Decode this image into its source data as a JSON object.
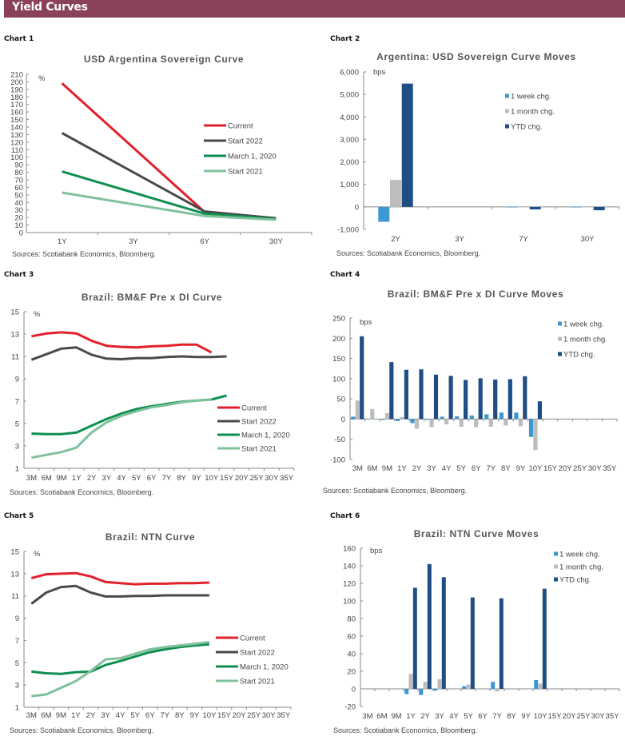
{
  "page": {
    "title": "Yield Curves",
    "source_text": "Sources: Scotiabank Economics, Bloomberg."
  },
  "colors": {
    "header": "#8b4258",
    "current": "#e2202c",
    "start2022": "#4a4a4a",
    "march2020": "#0f8f4f",
    "start2021": "#7fc19b",
    "week": "#3d97d3",
    "month": "#bdbdbd",
    "ytd": "#1f4e86"
  },
  "chart_data": [
    {
      "label": "Chart 1",
      "type": "line",
      "title": "USD Argentina Sovereign Curve",
      "unit_label": "%",
      "categories": [
        "1Y",
        "3Y",
        "6Y",
        "30Y"
      ],
      "ylim": [
        0,
        210
      ],
      "yticks": [
        0,
        10,
        20,
        30,
        40,
        50,
        60,
        70,
        80,
        90,
        100,
        110,
        120,
        130,
        140,
        150,
        160,
        170,
        180,
        190,
        200,
        210
      ],
      "legend_position": "right",
      "series": [
        {
          "name": "Current",
          "color_key": "current",
          "values": [
            198,
            null,
            27,
            19
          ]
        },
        {
          "name": "Start 2022",
          "color_key": "start2022",
          "values": [
            132,
            null,
            28,
            19
          ]
        },
        {
          "name": "March 1, 2020",
          "color_key": "march2020",
          "values": [
            81,
            null,
            25,
            18
          ]
        },
        {
          "name": "Start 2021",
          "color_key": "start2021",
          "values": [
            53,
            null,
            22,
            17
          ]
        }
      ]
    },
    {
      "label": "Chart 2",
      "type": "bar",
      "title": "Argentina: USD Sovereign Curve Moves",
      "unit_label": "bps",
      "categories": [
        "2Y",
        "3Y",
        "7Y",
        "30Y"
      ],
      "ylim": [
        -1000,
        6000
      ],
      "yticks": [
        -1000,
        0,
        1000,
        2000,
        3000,
        4000,
        5000,
        6000
      ],
      "ytick_labels": [
        "-1,000",
        "0",
        "1,000",
        "2,000",
        "3,000",
        "4,000",
        "5,000",
        "6,000"
      ],
      "legend_position": "top-right",
      "series": [
        {
          "name": "1 week chg.",
          "color_key": "week",
          "values": [
            -660,
            null,
            -15,
            -20
          ]
        },
        {
          "name": "1 month chg.",
          "color_key": "month",
          "values": [
            1200,
            null,
            -10,
            -10
          ]
        },
        {
          "name": "YTD chg.",
          "color_key": "ytd",
          "values": [
            5480,
            null,
            -110,
            -150
          ]
        }
      ]
    },
    {
      "label": "Chart 3",
      "type": "line",
      "title": "Brazil: BM&F Pre x DI Curve",
      "unit_label": "%",
      "categories": [
        "3M",
        "6M",
        "9M",
        "1Y",
        "2Y",
        "3Y",
        "4Y",
        "5Y",
        "6Y",
        "7Y",
        "8Y",
        "9Y",
        "10Y",
        "15Y",
        "20Y",
        "25Y",
        "30Y",
        "35Y"
      ],
      "ylim": [
        1,
        15
      ],
      "yticks": [
        1,
        3,
        5,
        7,
        9,
        11,
        13,
        15
      ],
      "legend_position": "bottom-right",
      "series": [
        {
          "name": "Current",
          "color_key": "current",
          "values": [
            12.8,
            13.05,
            13.15,
            13.05,
            12.4,
            11.95,
            11.85,
            11.8,
            11.9,
            11.95,
            12.05,
            12.05,
            11.35,
            null,
            null,
            null,
            null,
            null
          ]
        },
        {
          "name": "Start 2022",
          "color_key": "start2022",
          "values": [
            10.7,
            11.2,
            11.7,
            11.8,
            11.15,
            10.8,
            10.75,
            10.85,
            10.85,
            10.95,
            11.0,
            10.95,
            10.95,
            11.0,
            null,
            null,
            null,
            null
          ]
        },
        {
          "name": "March 1, 2020",
          "color_key": "march2020",
          "values": [
            4.1,
            4.05,
            4.05,
            4.2,
            4.8,
            5.4,
            5.9,
            6.3,
            6.55,
            6.75,
            6.95,
            7.05,
            7.15,
            7.5,
            null,
            null,
            null,
            null
          ]
        },
        {
          "name": "Start 2021",
          "color_key": "start2021",
          "values": [
            1.95,
            2.2,
            2.45,
            2.85,
            4.2,
            5.1,
            5.7,
            6.1,
            6.45,
            6.65,
            6.9,
            7.05,
            7.15,
            null,
            null,
            null,
            null,
            null
          ]
        }
      ]
    },
    {
      "label": "Chart 4",
      "type": "bar",
      "title": "Brazil: BM&F Pre x DI Curve Moves",
      "unit_label": "bps",
      "categories": [
        "3M",
        "6M",
        "9M",
        "1Y",
        "2Y",
        "3Y",
        "4Y",
        "5Y",
        "6Y",
        "7Y",
        "8Y",
        "9Y",
        "10Y",
        "15Y",
        "20Y",
        "25Y",
        "30Y",
        "35Y"
      ],
      "ylim": [
        -100,
        250
      ],
      "yticks": [
        -100,
        -50,
        0,
        50,
        100,
        150,
        200,
        250
      ],
      "legend_position": "top-right",
      "series": [
        {
          "name": "1 week chg.",
          "color_key": "week",
          "values": [
            6,
            1,
            -2,
            -5,
            -10,
            -2,
            6,
            7,
            9,
            12,
            16,
            16,
            -44,
            null,
            null,
            null,
            null,
            null
          ]
        },
        {
          "name": "1 month chg.",
          "color_key": "month",
          "values": [
            46,
            25,
            15,
            5,
            -24,
            -20,
            -13,
            -19,
            -20,
            -19,
            -16,
            -18,
            -77,
            null,
            null,
            null,
            null,
            null
          ]
        },
        {
          "name": "YTD chg.",
          "color_key": "ytd",
          "values": [
            205,
            null,
            141,
            122,
            123,
            110,
            107,
            97,
            101,
            98,
            99,
            106,
            44,
            null,
            null,
            null,
            null,
            null
          ]
        }
      ]
    },
    {
      "label": "Chart 5",
      "type": "line",
      "title": "Brazil: NTN Curve",
      "unit_label": "%",
      "categories": [
        "3M",
        "6M",
        "9M",
        "1Y",
        "2Y",
        "3Y",
        "4Y",
        "5Y",
        "6Y",
        "7Y",
        "8Y",
        "9Y",
        "10Y",
        "15Y",
        "20Y",
        "25Y",
        "30Y",
        "35Y"
      ],
      "ylim": [
        1,
        15
      ],
      "yticks": [
        1,
        3,
        5,
        7,
        9,
        11,
        13,
        15
      ],
      "legend_position": "bottom-right",
      "series": [
        {
          "name": "Current",
          "color_key": "current",
          "values": [
            12.6,
            12.95,
            13.0,
            13.05,
            12.75,
            12.25,
            12.15,
            12.05,
            12.1,
            12.1,
            12.15,
            12.15,
            12.2,
            null,
            null,
            null,
            null,
            null
          ]
        },
        {
          "name": "Start 2022",
          "color_key": "start2022",
          "values": [
            10.3,
            11.3,
            11.8,
            11.9,
            11.3,
            10.95,
            10.95,
            11.0,
            11.0,
            11.05,
            11.05,
            11.05,
            11.05,
            null,
            null,
            null,
            null,
            null
          ]
        },
        {
          "name": "March 1, 2020",
          "color_key": "march2020",
          "values": [
            4.2,
            4.05,
            4.0,
            4.15,
            4.2,
            4.8,
            5.15,
            5.55,
            5.95,
            6.2,
            6.4,
            6.55,
            6.65,
            null,
            null,
            null,
            null,
            null
          ]
        },
        {
          "name": "Start 2021",
          "color_key": "start2021",
          "values": [
            2.0,
            2.15,
            2.75,
            3.35,
            4.25,
            5.3,
            5.4,
            5.8,
            6.2,
            6.4,
            6.55,
            6.7,
            6.85,
            null,
            null,
            null,
            null,
            null
          ]
        }
      ]
    },
    {
      "label": "Chart 6",
      "type": "bar",
      "title": "Brazil: NTN Curve Moves",
      "unit_label": "bps",
      "categories": [
        "3M",
        "6M",
        "9M",
        "1Y",
        "2Y",
        "3Y",
        "4Y",
        "5Y",
        "6Y",
        "7Y",
        "8Y",
        "9Y",
        "10Y",
        "15Y",
        "20Y",
        "25Y",
        "30Y",
        "35Y"
      ],
      "ylim": [
        -20,
        160
      ],
      "yticks": [
        -20,
        0,
        20,
        40,
        60,
        80,
        100,
        120,
        140,
        160
      ],
      "legend_position": "top-right",
      "series": [
        {
          "name": "1 week chg.",
          "color_key": "week",
          "values": [
            null,
            null,
            null,
            -6,
            -7,
            -2,
            null,
            3,
            null,
            8,
            null,
            null,
            10,
            null,
            null,
            null,
            null,
            null
          ]
        },
        {
          "name": "1 month chg.",
          "color_key": "month",
          "values": [
            null,
            null,
            null,
            17,
            8,
            11,
            null,
            5,
            null,
            -3,
            null,
            null,
            6,
            null,
            null,
            null,
            null,
            null
          ]
        },
        {
          "name": "YTD chg.",
          "color_key": "ytd",
          "values": [
            null,
            null,
            null,
            115,
            142,
            127,
            null,
            104,
            null,
            103,
            null,
            null,
            114,
            null,
            null,
            null,
            null,
            null
          ]
        }
      ]
    }
  ]
}
